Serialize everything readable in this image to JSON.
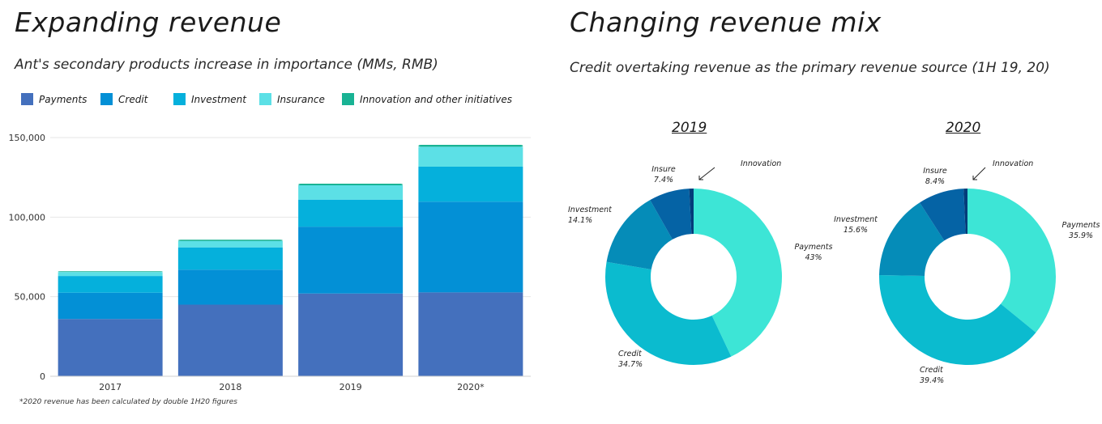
{
  "left": {
    "title": "Expanding revenue",
    "subtitle": "Ant's secondary products increase in importance (MMs, RMB)",
    "footnote": "*2020 revenue has been calculated by double 1H20 figures"
  },
  "right": {
    "title": "Changing revenue mix",
    "subtitle": "Credit overtaking revenue as the primary revenue source (1H 19, 20)"
  },
  "colors": {
    "payments": "#4470bd",
    "credit": "#0390d6",
    "investment": "#05b0dc",
    "insurance": "#5ce0e6",
    "innovation": "#19b394",
    "donut_payments": "#3de5d6",
    "donut_credit": "#0bbbcf",
    "donut_investment": "#058cb8",
    "donut_insure": "#0563a5",
    "donut_innovation": "#033c7a"
  },
  "chart_data": [
    {
      "type": "bar",
      "stacked": true,
      "categories": [
        "2017",
        "2018",
        "2019",
        "2020*"
      ],
      "series": [
        {
          "name": "Payments",
          "values": [
            36000,
            45000,
            52000,
            52700
          ]
        },
        {
          "name": "Credit",
          "values": [
            16500,
            22000,
            42000,
            57000
          ]
        },
        {
          "name": "Investment",
          "values": [
            10500,
            14000,
            17000,
            22000
          ]
        },
        {
          "name": "Insurance",
          "values": [
            2500,
            4000,
            9000,
            12500
          ]
        },
        {
          "name": "Innovation and other initiatives",
          "values": [
            500,
            800,
            1000,
            1200
          ]
        }
      ],
      "ylim": [
        0,
        150000
      ],
      "yticks": [
        "0",
        "50,000",
        "100,000",
        "150,000"
      ],
      "ytick_values": [
        0,
        50000,
        100000,
        150000
      ],
      "grid": true,
      "legend_position": "top-left"
    },
    {
      "type": "pie",
      "donut": true,
      "title": "2019",
      "slices": [
        {
          "name": "Payments",
          "label": "Payments",
          "value": 43,
          "text": "43%"
        },
        {
          "name": "Credit",
          "label": "Credit",
          "value": 34.7,
          "text": "34.7%"
        },
        {
          "name": "Investment",
          "label": "Investment",
          "value": 14.1,
          "text": "14.1%"
        },
        {
          "name": "Insure",
          "label": "Insure",
          "value": 7.4,
          "text": "7.4%"
        },
        {
          "name": "Innovation",
          "label": "Innovation",
          "value": 0.8,
          "text": ""
        }
      ]
    },
    {
      "type": "pie",
      "donut": true,
      "title": "2020",
      "slices": [
        {
          "name": "Payments",
          "label": "Payments",
          "value": 35.9,
          "text": "35.9%"
        },
        {
          "name": "Credit",
          "label": "Credit",
          "value": 39.4,
          "text": "39.4%"
        },
        {
          "name": "Investment",
          "label": "Investment",
          "value": 15.6,
          "text": "15.6%"
        },
        {
          "name": "Insure",
          "label": "Insure",
          "value": 8.4,
          "text": "8.4%"
        },
        {
          "name": "Innovation",
          "label": "Innovation",
          "value": 0.7,
          "text": ""
        }
      ]
    }
  ]
}
